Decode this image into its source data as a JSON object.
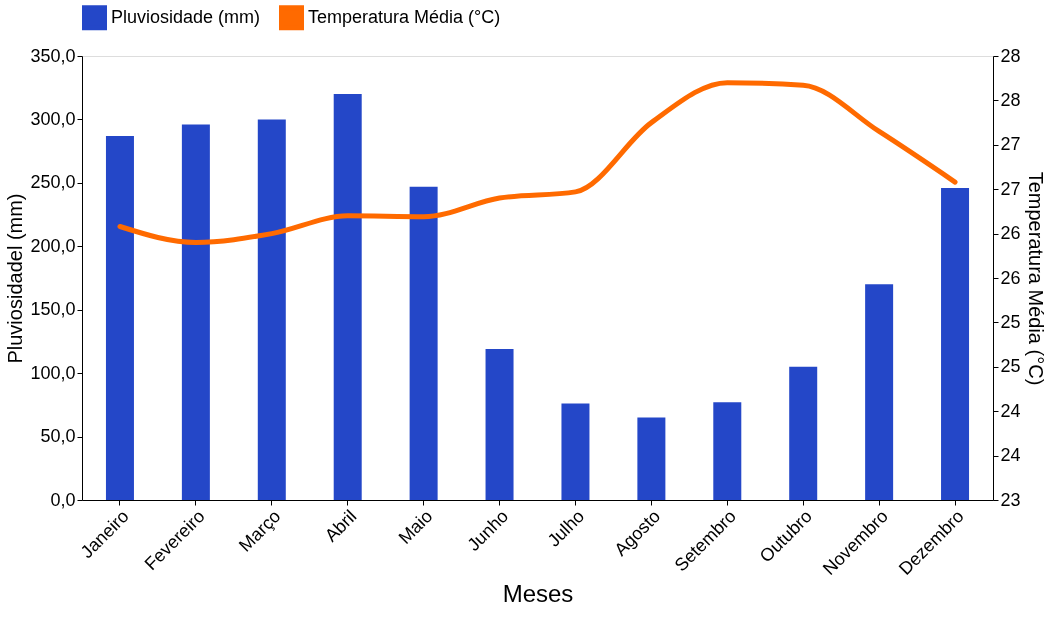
{
  "chart_data": {
    "type": "bar",
    "xlabel": "Meses",
    "ylabel": "Pluviosidadel (mm)",
    "y2label": "Temperatura Média (°C)",
    "categories": [
      "Janeiro",
      "Fevereiro",
      "Março",
      "Abril",
      "Maio",
      "Junho",
      "Julho",
      "Agosto",
      "Setembro",
      "Outubro",
      "Novembro",
      "Dezembro"
    ],
    "series": [
      {
        "name": "Pluviosidade (mm)",
        "color": "#2447c8",
        "values": [
          287,
          296,
          300,
          320,
          247,
          119,
          76,
          65,
          77,
          105,
          170,
          246
        ]
      },
      {
        "name": "Temperatura Média (°C)",
        "type": "line",
        "axis": "y2",
        "color": "#ff6a00",
        "values": [
          26.08,
          25.9,
          26.0,
          26.2,
          26.19,
          26.4,
          26.47,
          27.25,
          27.7,
          27.67,
          27.15,
          26.58
        ]
      }
    ],
    "ylim": [
      0,
      350
    ],
    "yticks": [
      {
        "value": 0,
        "label": "0,0"
      },
      {
        "value": 50,
        "label": "50,0"
      },
      {
        "value": 100,
        "label": "100,0"
      },
      {
        "value": 150,
        "label": "150,0"
      },
      {
        "value": 200,
        "label": "200,0"
      },
      {
        "value": 250,
        "label": "250,0"
      },
      {
        "value": 300,
        "label": "300,0"
      },
      {
        "value": 350,
        "label": "350,0"
      }
    ],
    "y2lim": [
      23,
      28
    ],
    "y2ticks": [
      23,
      {
        "value": 23.5,
        "label": "24"
      },
      24,
      {
        "value": 24.5,
        "label": "25"
      },
      25,
      {
        "value": 25.5,
        "label": "26"
      },
      26,
      {
        "value": 26.5,
        "label": "27"
      },
      27,
      {
        "value": 27.5,
        "label": "28"
      },
      28
    ],
    "grid": false,
    "legend": "top"
  }
}
